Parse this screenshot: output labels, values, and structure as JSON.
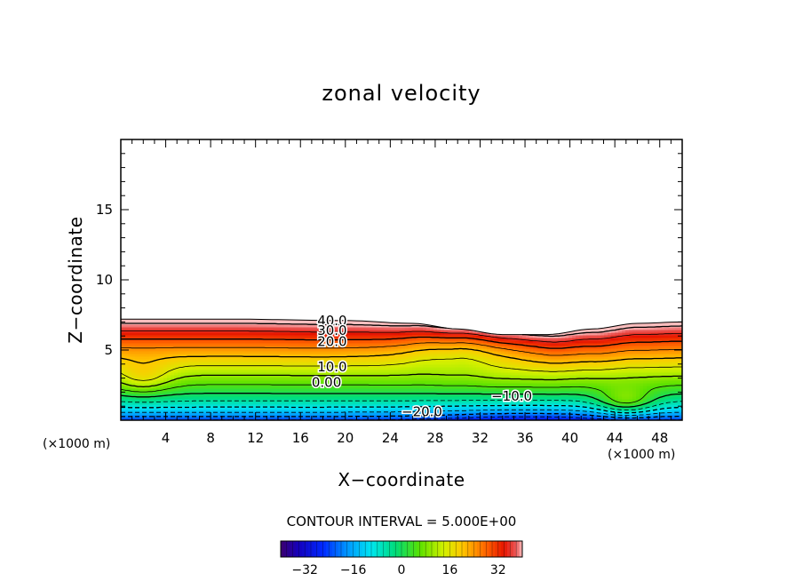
{
  "chart_data": {
    "type": "heatmap",
    "title": "zonal velocity",
    "xlabel": "X−coordinate",
    "ylabel": "Z−coordinate",
    "x_unit_left": "(×1000 m)",
    "x_unit_right": "(×1000 m)",
    "xlim": [
      0,
      50
    ],
    "ylim": [
      0,
      20
    ],
    "x_ticks": [
      4,
      8,
      12,
      16,
      20,
      24,
      28,
      32,
      36,
      40,
      44,
      48
    ],
    "x_tick_labels": [
      "4",
      "8",
      "12",
      "16",
      "20",
      "24",
      "28",
      "32",
      "36",
      "40",
      "44",
      "48"
    ],
    "y_ticks": [
      5,
      10,
      15
    ],
    "y_tick_labels": [
      "5",
      "10",
      "15"
    ],
    "contour_interval_text": "CONTOUR INTERVAL = 5.000E+00",
    "contour_interval": 5,
    "contour_labels": [
      {
        "text": "40.0",
        "x": 17.5,
        "y": 7.1
      },
      {
        "text": "30.0",
        "x": 17.5,
        "y": 6.4
      },
      {
        "text": "20.0",
        "x": 17.5,
        "y": 5.6
      },
      {
        "text": "10.0",
        "x": 17.5,
        "y": 3.8
      },
      {
        "text": "0.00",
        "x": 17.0,
        "y": 2.7
      },
      {
        "text": "−10.0",
        "x": 33.0,
        "y": 1.7
      },
      {
        "text": "−20.0",
        "x": 25.0,
        "y": 0.6
      }
    ],
    "top_boundary": {
      "x": [
        0,
        10,
        20,
        26,
        30,
        34,
        38,
        42,
        46,
        50
      ],
      "z": [
        7.2,
        7.2,
        7.1,
        6.9,
        6.5,
        6.1,
        6.1,
        6.5,
        6.9,
        7.0
      ]
    },
    "colorbar": {
      "range": [
        -40,
        40
      ],
      "ticks": [
        -32,
        -16,
        0,
        16,
        32
      ],
      "tick_labels": [
        "−32",
        "−16",
        "0",
        "16",
        "32"
      ]
    }
  }
}
